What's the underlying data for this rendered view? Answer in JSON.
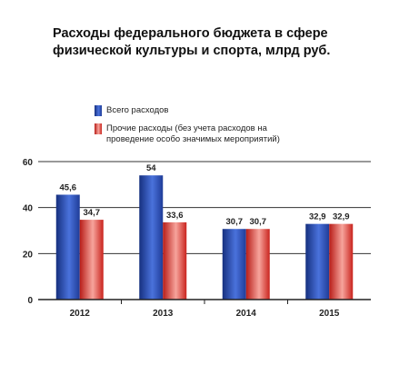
{
  "title_lines": [
    "Расходы федерального бюджета в сфере",
    "физической культуры и спорта, млрд руб."
  ],
  "chart_data": {
    "type": "bar",
    "title": "Расходы федерального бюджета в сфере физической культуры и спорта, млрд руб.",
    "categories": [
      "2012",
      "2013",
      "2014",
      "2015"
    ],
    "series": [
      {
        "name": "Всего расходов",
        "values": [
          45.6,
          54,
          30.7,
          32.9
        ],
        "labels": [
          "45,6",
          "54",
          "30,7",
          "32,9"
        ],
        "color": "#2b4fb5"
      },
      {
        "name": "Прочие расходы (без учета расходов на проведение особо значимых мероприятий)",
        "name_lines": [
          "Прочие расходы (без учета расходов на",
          "проведение особо значимых мероприятий)"
        ],
        "values": [
          34.7,
          33.6,
          30.7,
          32.9
        ],
        "labels": [
          "34,7",
          "33,6",
          "30,7",
          "32,9"
        ],
        "color": "#e0342b"
      }
    ],
    "yticks": [
      "0",
      "20",
      "40",
      "60"
    ],
    "ylim": [
      0,
      60
    ],
    "grid": true,
    "legend": "top-left"
  }
}
